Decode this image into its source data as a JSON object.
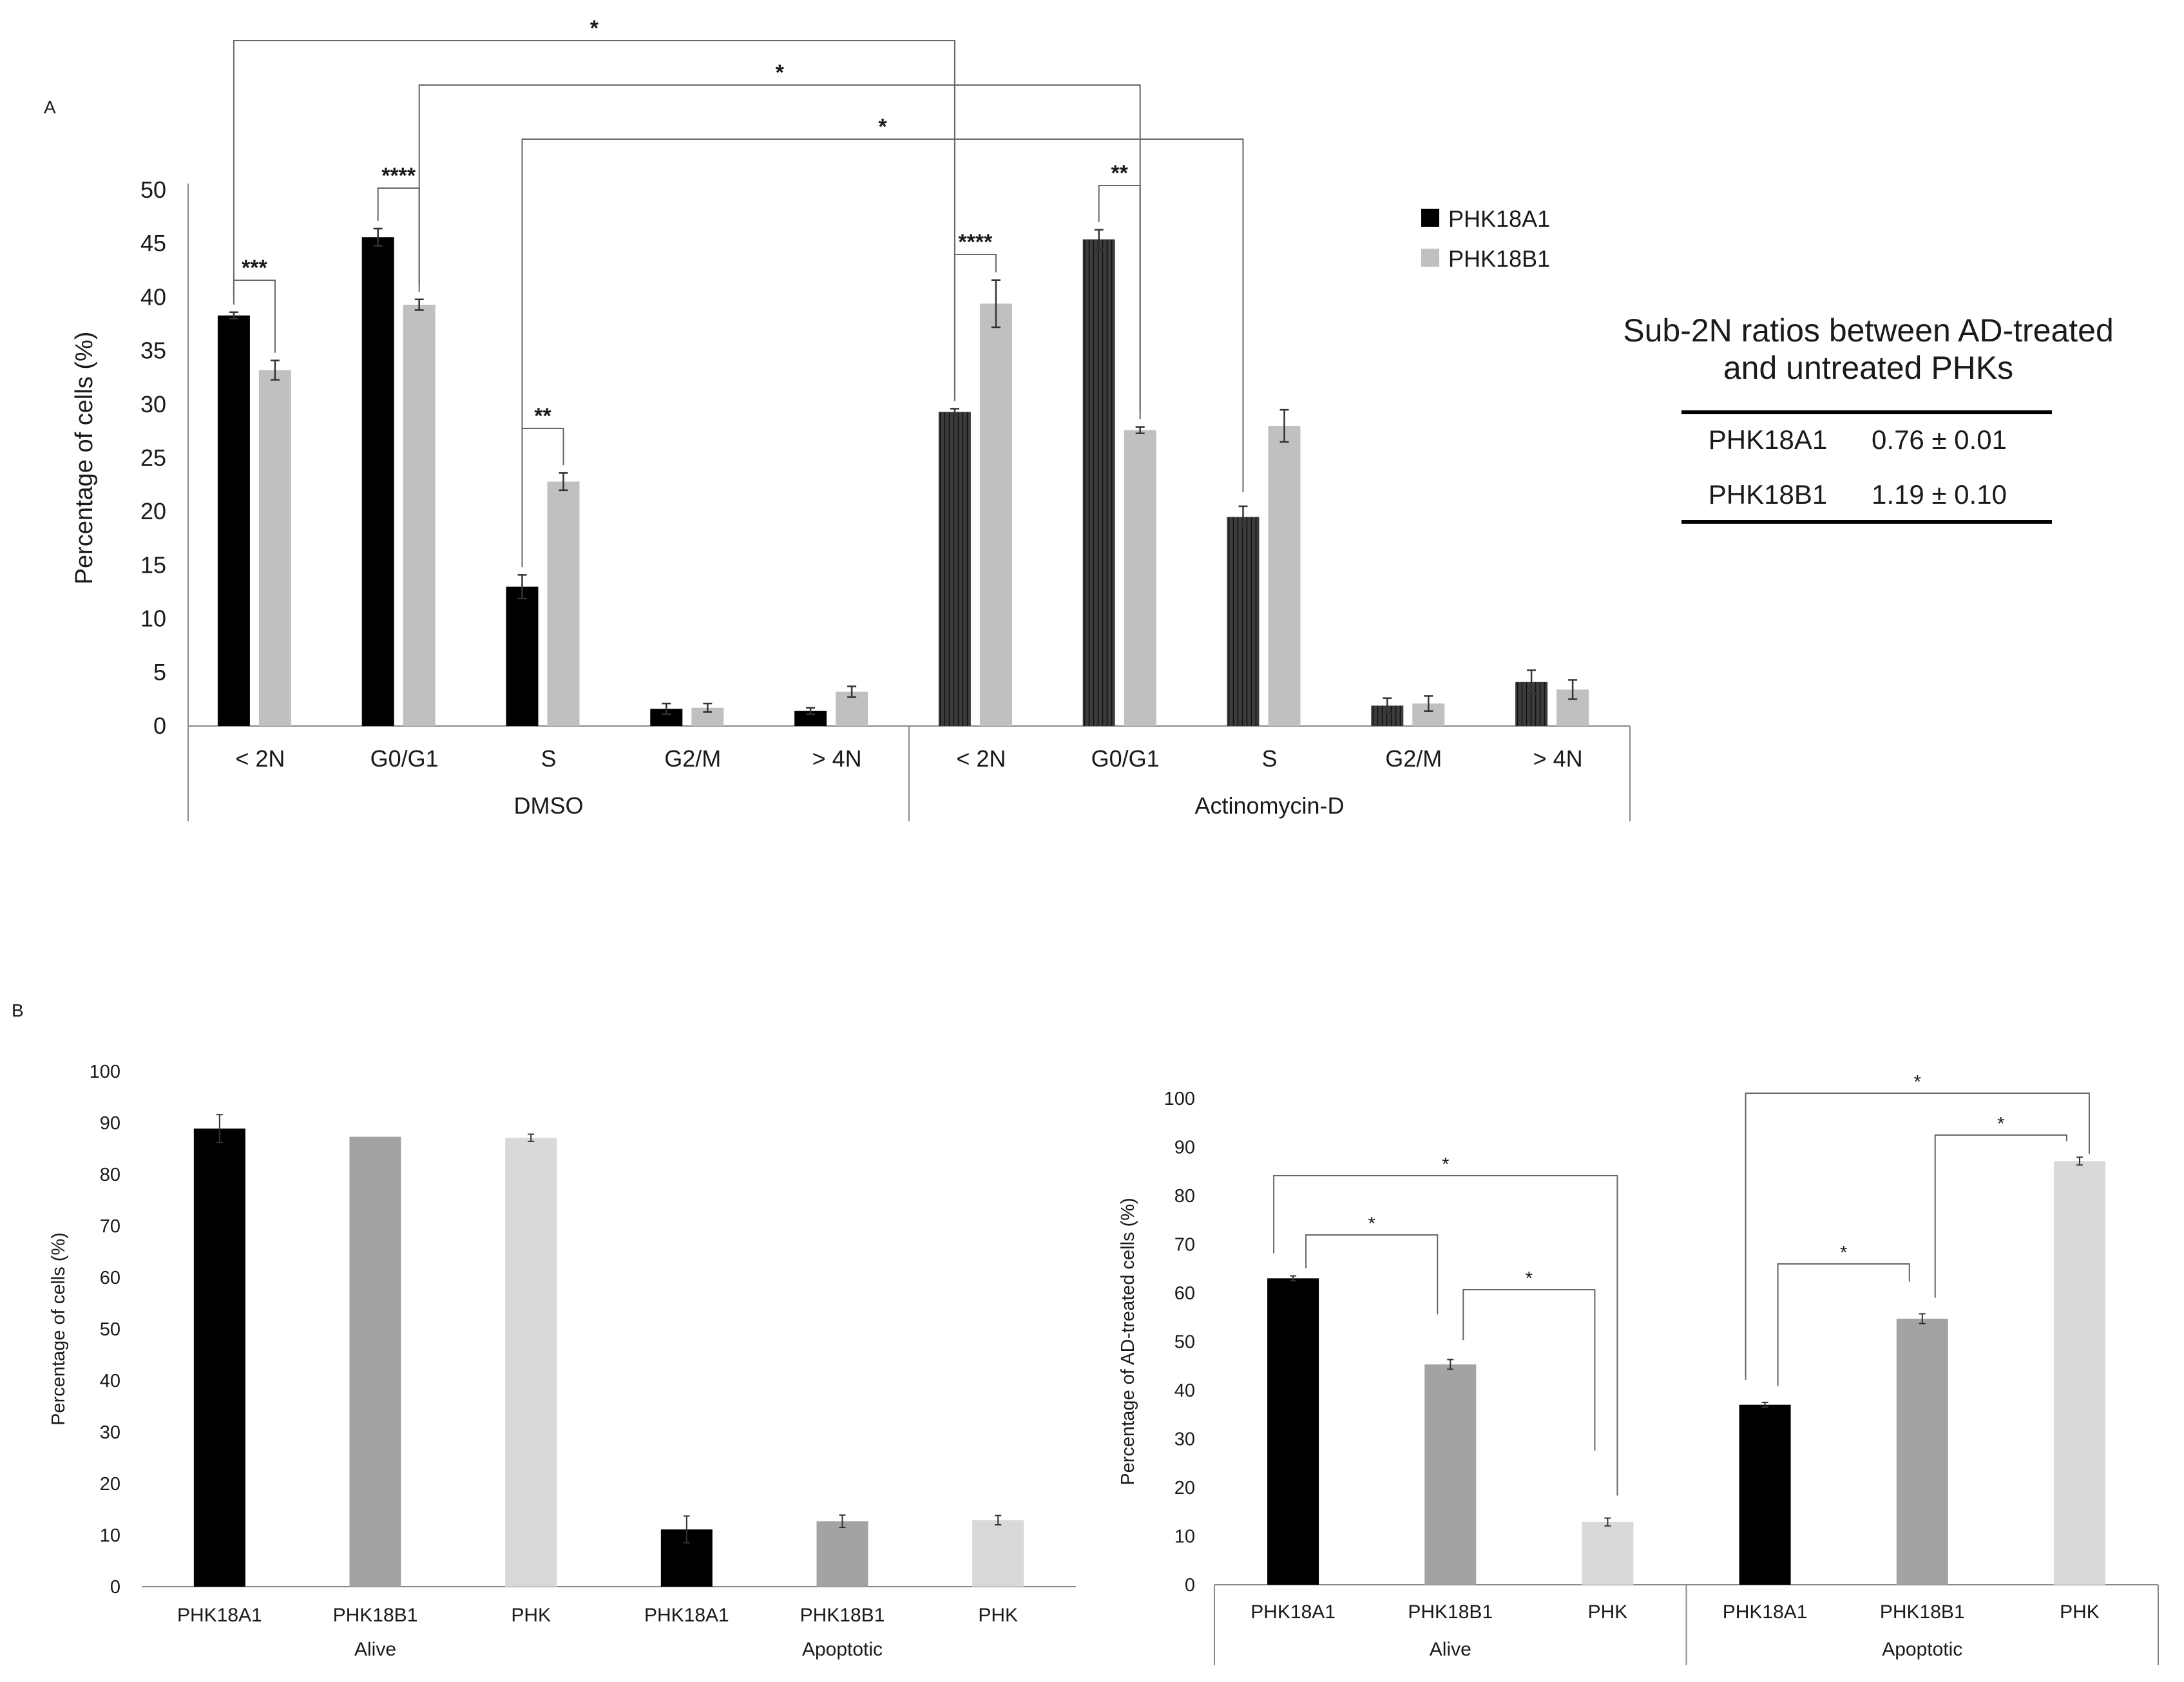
{
  "chart_data": [
    {
      "id": "A",
      "type": "bar",
      "panel_label": "A",
      "ylabel": "Percentage of cells (%)",
      "ylim": [
        0,
        50
      ],
      "yticks": [
        0,
        5,
        10,
        15,
        20,
        25,
        30,
        35,
        40,
        45,
        50
      ],
      "groups": [
        "DMSO",
        "Actinomycin-D"
      ],
      "categories": [
        "< 2N",
        "G0/G1",
        "S",
        "G2/M",
        "> 4N"
      ],
      "legend": [
        "PHK18A1",
        "PHK18B1"
      ],
      "colors": {
        "PHK18A1_DMSO": "#000000",
        "PHK18A1_AD": "#3c3c3c",
        "PHK18B1": "#c0c0c0"
      },
      "series": [
        {
          "name": "PHK18A1",
          "group": "DMSO",
          "values": [
            38.3,
            45.6,
            13.0,
            1.6,
            1.4
          ],
          "err": [
            0.3,
            0.8,
            1.1,
            0.5,
            0.3
          ]
        },
        {
          "name": "PHK18B1",
          "group": "DMSO",
          "values": [
            33.2,
            39.3,
            22.8,
            1.7,
            3.2
          ],
          "err": [
            0.9,
            0.5,
            0.8,
            0.4,
            0.5
          ]
        },
        {
          "name": "PHK18A1",
          "group": "Actinomycin-D",
          "values": [
            29.3,
            45.4,
            19.5,
            1.9,
            4.1
          ],
          "err": [
            0.3,
            0.9,
            1.0,
            0.7,
            1.1
          ]
        },
        {
          "name": "PHK18B1",
          "group": "Actinomycin-D",
          "values": [
            39.4,
            27.6,
            28.0,
            2.1,
            3.4
          ],
          "err": [
            2.2,
            0.3,
            1.5,
            0.7,
            0.9
          ]
        }
      ],
      "annotations": [
        {
          "label": "***",
          "between": [
            "DMSO < 2N PHK18A1",
            "DMSO < 2N PHK18B1"
          ]
        },
        {
          "label": "****",
          "between": [
            "DMSO G0/G1 PHK18A1",
            "DMSO G0/G1 PHK18B1"
          ]
        },
        {
          "label": "**",
          "between": [
            "DMSO S PHK18A1",
            "DMSO S PHK18B1"
          ]
        },
        {
          "label": "****",
          "between": [
            "AD < 2N PHK18A1",
            "AD < 2N PHK18B1"
          ]
        },
        {
          "label": "**",
          "between": [
            "AD G0/G1 PHK18A1",
            "AD G0/G1 PHK18B1"
          ]
        },
        {
          "label": "*",
          "between": [
            "DMSO < 2N PHK18A1",
            "AD < 2N PHK18A1"
          ]
        },
        {
          "label": "*",
          "between": [
            "DMSO G0/G1 PHK18B1",
            "AD G0/G1 PHK18B1"
          ]
        },
        {
          "label": "*",
          "between": [
            "DMSO S PHK18A1",
            "AD S PHK18A1"
          ]
        }
      ]
    },
    {
      "id": "B-left",
      "type": "bar",
      "panel_label": "B",
      "ylabel": "Percentage of cells (%)",
      "ylim": [
        0,
        100
      ],
      "yticks": [
        0,
        10,
        20,
        30,
        40,
        50,
        60,
        70,
        80,
        90,
        100
      ],
      "groups": [
        "Alive",
        "Apoptotic"
      ],
      "categories": [
        "PHK18A1",
        "PHK18B1",
        "PHK",
        "PHK18A1",
        "PHK18B1",
        "PHK"
      ],
      "colors": [
        "#000000",
        "#a3a3a3",
        "#d9d9d9",
        "#000000",
        "#a3a3a3",
        "#d9d9d9"
      ],
      "values": [
        88.9,
        87.3,
        87.1,
        11.1,
        12.7,
        12.9
      ],
      "err": [
        2.7,
        0,
        0.7,
        2.6,
        1.2,
        0.9
      ]
    },
    {
      "id": "B-right",
      "type": "bar",
      "ylabel": "Percentage of AD-treated cells (%)",
      "ylim": [
        0,
        100
      ],
      "yticks": [
        0,
        10,
        20,
        30,
        40,
        50,
        60,
        70,
        80,
        90,
        100
      ],
      "groups": [
        "Alive",
        "Apoptotic"
      ],
      "categories": [
        "PHK18A1",
        "PHK18B1",
        "PHK",
        "PHK18A1",
        "PHK18B1",
        "PHK"
      ],
      "colors": [
        "#000000",
        "#a3a3a3",
        "#d9d9d9",
        "#000000",
        "#a3a3a3",
        "#d9d9d9"
      ],
      "values": [
        63.0,
        45.3,
        12.9,
        37.0,
        54.7,
        87.1
      ],
      "err": [
        0.5,
        1.0,
        0.8,
        0.5,
        1.0,
        0.8
      ],
      "annotations": [
        {
          "label": "*",
          "between": [
            "Alive PHK18A1",
            "Alive PHK18B1"
          ]
        },
        {
          "label": "*",
          "between": [
            "Alive PHK18B1",
            "Alive PHK"
          ]
        },
        {
          "label": "*",
          "between": [
            "Alive PHK18A1",
            "Alive PHK"
          ]
        },
        {
          "label": "*",
          "between": [
            "Apoptotic PHK18A1",
            "Apoptotic PHK18B1"
          ]
        },
        {
          "label": "*",
          "between": [
            "Apoptotic PHK18B1",
            "Apoptotic PHK"
          ]
        },
        {
          "label": "*",
          "between": [
            "Apoptotic PHK18A1",
            "Apoptotic PHK"
          ]
        }
      ]
    }
  ],
  "table": {
    "title_line1": "Sub-2N ratios between AD-treated",
    "title_line2": "and untreated PHKs",
    "rows": [
      {
        "name": "PHK18A1",
        "value": "0.76 ± 0.01"
      },
      {
        "name": "PHK18B1",
        "value": "1.19 ± 0.10"
      }
    ]
  }
}
